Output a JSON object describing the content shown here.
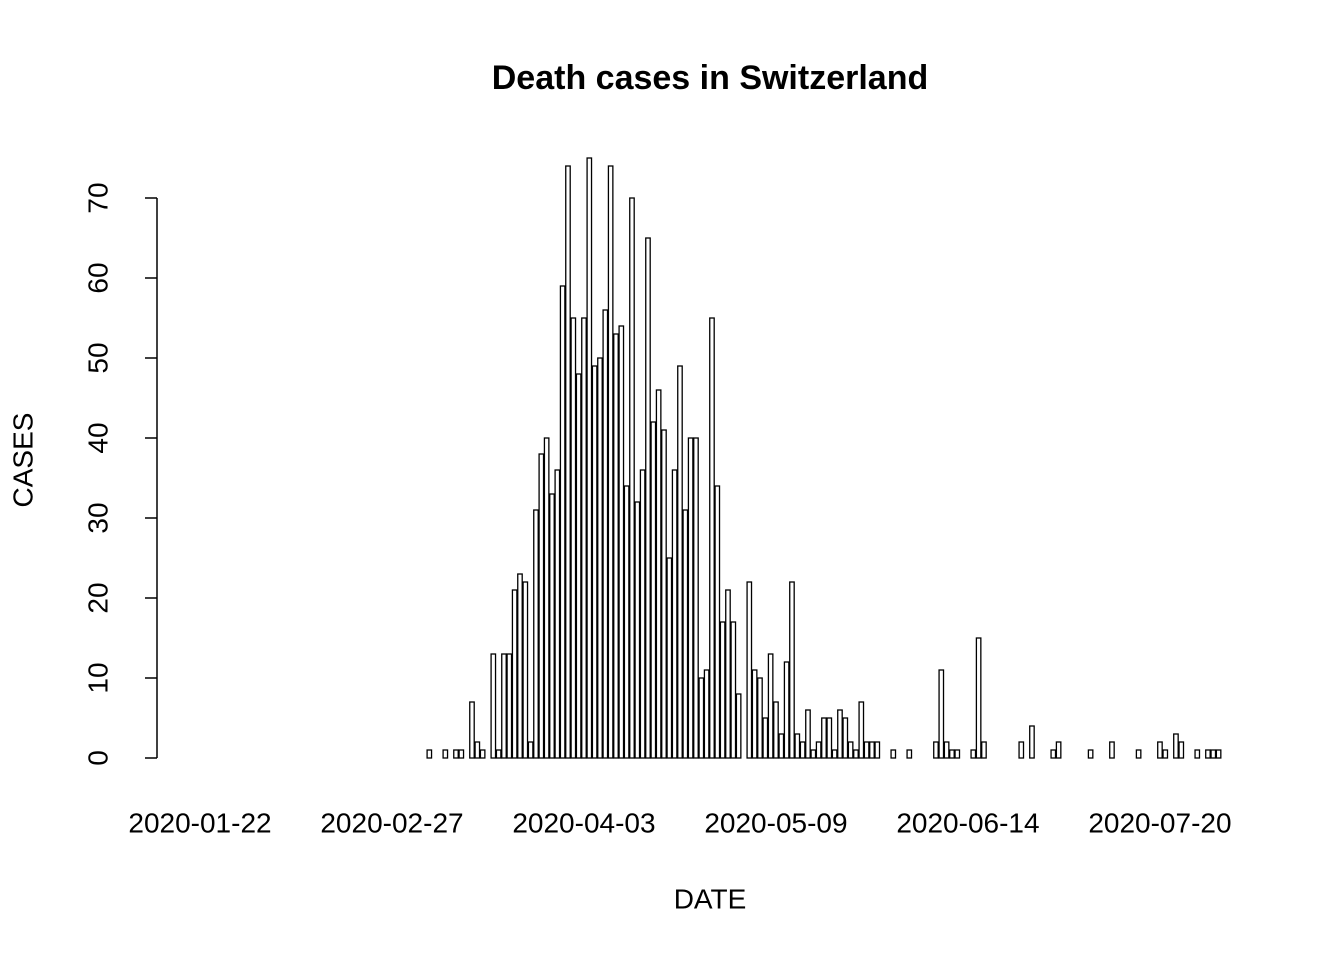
{
  "chart_data": {
    "type": "bar",
    "title": "Death cases in Switzerland",
    "x_label": "DATE",
    "y_label": "CASES",
    "categories": [
      "2020-01-22",
      null,
      null,
      null,
      null,
      null,
      null,
      null,
      null,
      null,
      null,
      null,
      null,
      null,
      null,
      null,
      null,
      null,
      null,
      null,
      null,
      null,
      null,
      null,
      null,
      null,
      null,
      null,
      null,
      null,
      null,
      null,
      null,
      null,
      null,
      null,
      "2020-02-27",
      null,
      null,
      null,
      null,
      null,
      null,
      null,
      null,
      null,
      null,
      null,
      null,
      null,
      null,
      null,
      null,
      null,
      null,
      null,
      null,
      null,
      null,
      null,
      null,
      null,
      null,
      null,
      null,
      null,
      null,
      null,
      null,
      null,
      null,
      null,
      "2020-04-03",
      null,
      null,
      null,
      null,
      null,
      null,
      null,
      null,
      null,
      null,
      null,
      null,
      null,
      null,
      null,
      null,
      null,
      null,
      null,
      null,
      null,
      null,
      null,
      null,
      null,
      null,
      null,
      null,
      null,
      null,
      null,
      null,
      null,
      null,
      null,
      "2020-05-09",
      null,
      null,
      null,
      null,
      null,
      null,
      null,
      null,
      null,
      null,
      null,
      null,
      null,
      null,
      null,
      null,
      null,
      null,
      null,
      null,
      null,
      null,
      null,
      null,
      null,
      null,
      null,
      null,
      null,
      null,
      null,
      null,
      null,
      null,
      null,
      "2020-06-14",
      null,
      null,
      null,
      null,
      null,
      null,
      null,
      null,
      null,
      null,
      null,
      null,
      null,
      null,
      null,
      null,
      null,
      null,
      null,
      null,
      null,
      null,
      null,
      null,
      null,
      null,
      null,
      null,
      null,
      null,
      null,
      null,
      null,
      null,
      null,
      "2020-07-20",
      null,
      null,
      null,
      null,
      null,
      null,
      null,
      null,
      null,
      null,
      null
    ],
    "values": [
      0,
      0,
      0,
      0,
      0,
      0,
      0,
      0,
      0,
      0,
      0,
      0,
      0,
      0,
      0,
      0,
      0,
      0,
      0,
      0,
      0,
      0,
      0,
      0,
      0,
      0,
      0,
      0,
      0,
      0,
      0,
      0,
      0,
      0,
      0,
      0,
      0,
      0,
      0,
      0,
      0,
      0,
      0,
      1,
      0,
      0,
      1,
      0,
      1,
      1,
      0,
      7,
      2,
      1,
      0,
      13,
      1,
      13,
      13,
      21,
      23,
      22,
      2,
      31,
      38,
      40,
      33,
      36,
      59,
      74,
      55,
      48,
      55,
      75,
      49,
      50,
      56,
      74,
      53,
      54,
      34,
      70,
      32,
      36,
      65,
      42,
      46,
      41,
      25,
      36,
      49,
      31,
      40,
      40,
      10,
      11,
      55,
      34,
      17,
      21,
      17,
      8,
      0,
      22,
      11,
      10,
      5,
      13,
      7,
      3,
      12,
      22,
      3,
      2,
      6,
      1,
      2,
      5,
      5,
      1,
      6,
      5,
      2,
      1,
      7,
      2,
      2,
      2,
      0,
      0,
      1,
      0,
      0,
      1,
      0,
      0,
      0,
      0,
      2,
      11,
      2,
      1,
      1,
      0,
      0,
      1,
      15,
      2,
      0,
      0,
      0,
      0,
      0,
      0,
      2,
      0,
      4,
      0,
      0,
      0,
      1,
      2,
      0,
      0,
      0,
      0,
      0,
      1,
      0,
      0,
      0,
      2,
      0,
      0,
      0,
      0,
      1,
      0,
      0,
      0,
      2,
      1,
      0,
      3,
      2,
      0,
      0,
      1,
      0,
      1,
      1,
      1
    ],
    "color": "#ffffff",
    "edge_color": "#000000",
    "ylim": [
      0,
      75
    ],
    "yticks": [
      0,
      10,
      20,
      30,
      40,
      50,
      60,
      70
    ]
  }
}
